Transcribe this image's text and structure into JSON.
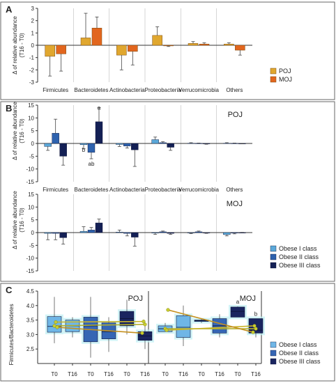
{
  "chart_data": [
    {
      "panel": "A",
      "type": "bar",
      "ylabel": [
        "Δ of relative abundance",
        "(T16 - T0)"
      ],
      "ylim": [
        -3,
        3
      ],
      "yticks": [
        -3,
        -2,
        -1,
        0,
        1,
        2,
        3
      ],
      "categories": [
        "Firmicutes",
        "Bacteroidetes",
        "Actinobacteria",
        "Proteobacteria",
        "Verrucomicrobia",
        "Others"
      ],
      "series": [
        {
          "name": "POJ",
          "color": "#E0A72F",
          "values": [
            -0.9,
            0.6,
            -0.8,
            0.8,
            0.15,
            0.1
          ],
          "errors": [
            1.6,
            2.0,
            1.2,
            0.7,
            0.15,
            0.1
          ]
        },
        {
          "name": "MOJ",
          "color": "#E2661E",
          "values": [
            -0.7,
            1.4,
            -0.5,
            -0.05,
            0.1,
            -0.4
          ],
          "errors": [
            1.4,
            0.9,
            1.1,
            0.05,
            0.1,
            0.4
          ]
        }
      ],
      "legend": {
        "position": "right",
        "labels": [
          "POJ",
          "MOJ"
        ]
      }
    },
    {
      "panel": "B",
      "type": "bar",
      "ylabel": [
        "Δ of relative abundance",
        "(T16 - T0)"
      ],
      "ylim": [
        -15,
        15
      ],
      "yticks": [
        -15,
        -10,
        -5,
        0,
        5,
        10,
        15
      ],
      "categories": [
        "Firmicutes",
        "Bacteroidetes",
        "Actinobacteria",
        "Proteobacteria",
        "Verrucomicrobia",
        "Others"
      ],
      "subpanels": [
        {
          "label": "POJ",
          "series": [
            {
              "name": "Obese I class",
              "values": [
                -1.2,
                -0.5,
                -0.4,
                1.5,
                0.1,
                0.1
              ],
              "errors": [
                1.5,
                1.5,
                0.8,
                1.0,
                0.2,
                0.2
              ]
            },
            {
              "name": "Obese II class",
              "values": [
                4.0,
                -3.5,
                -1.0,
                0.3,
                0.05,
                0.05
              ],
              "errors": [
                5.5,
                2.5,
                0.8,
                0.4,
                0.1,
                0.1
              ]
            },
            {
              "name": "Obese III class",
              "values": [
                -5.0,
                8.5,
                -2.5,
                -1.5,
                -0.1,
                -0.05
              ],
              "errors": [
                3.5,
                5.5,
                6.5,
                1.2,
                0.2,
                0.1
              ]
            }
          ],
          "annotations": [
            {
              "category": "Bacteroidetes",
              "series": "Obese I class",
              "text": "b"
            },
            {
              "category": "Bacteroidetes",
              "series": "Obese II class",
              "text": "ab"
            },
            {
              "category": "Bacteroidetes",
              "series": "Obese III class",
              "text": "a"
            }
          ]
        },
        {
          "label": "MOJ",
          "series": [
            {
              "name": "Obese I class",
              "values": [
                -0.3,
                0.5,
                0.2,
                -0.2,
                -0.1,
                -0.8
              ],
              "errors": [
                2.5,
                1.8,
                0.8,
                0.5,
                0.3,
                0.5
              ]
            },
            {
              "name": "Obese II class",
              "values": [
                -0.3,
                1.0,
                -0.3,
                0.3,
                0.3,
                -0.2
              ],
              "errors": [
                2.5,
                1.0,
                1.0,
                0.3,
                0.3,
                0.3
              ]
            },
            {
              "name": "Obese III class",
              "values": [
                -2.0,
                3.8,
                -1.8,
                -0.3,
                -0.1,
                0.0
              ],
              "errors": [
                2.5,
                1.5,
                3.5,
                0.4,
                0.2,
                0.1
              ]
            }
          ]
        }
      ],
      "legend": {
        "position": "right",
        "labels": [
          "Obese I class",
          "Obese II class",
          "Obese III class"
        ]
      }
    },
    {
      "panel": "C",
      "type": "box",
      "ylabel": "Firmicutes/Bacteroidetes",
      "ylim": [
        2.0,
        4.5
      ],
      "yticks": [
        2.5,
        3.0,
        3.5,
        4.0,
        4.5
      ],
      "xticks": [
        "T0",
        "T16",
        "T0",
        "T16",
        "T0",
        "T16"
      ],
      "subpanels": [
        {
          "label": "POJ",
          "boxes": [
            {
              "class": "Obese I class",
              "time": "T0",
              "whisker_low": 2.7,
              "q1": 3.08,
              "median": 3.28,
              "q3": 3.62,
              "whisker_high": 4.3
            },
            {
              "class": "Obese I class",
              "time": "T16",
              "whisker_low": 2.9,
              "q1": 3.1,
              "median": 3.3,
              "q3": 3.5,
              "whisker_high": 3.6
            },
            {
              "class": "Obese II class",
              "time": "T0",
              "whisker_low": 2.2,
              "q1": 2.75,
              "median": 3.3,
              "q3": 3.6,
              "whisker_high": 4.3
            },
            {
              "class": "Obese II class",
              "time": "T16",
              "whisker_low": 2.4,
              "q1": 2.85,
              "median": 3.1,
              "q3": 3.4,
              "whisker_high": 3.6
            },
            {
              "class": "Obese III class",
              "time": "T0",
              "whisker_low": 3.0,
              "q1": 3.3,
              "median": 3.55,
              "q3": 3.8,
              "whisker_high": 4.2
            },
            {
              "class": "Obese III class",
              "time": "T16",
              "whisker_low": 2.5,
              "q1": 2.8,
              "median": 2.95,
              "q3": 3.1,
              "whisker_high": 3.3
            }
          ],
          "lines": [
            {
              "name": "Obese I class",
              "color": "#B5AF2C",
              "T0": 3.3,
              "T16": 3.35
            },
            {
              "name": "Obese II class",
              "color": "#C9B429",
              "T0": 3.43,
              "T16": 3.45
            },
            {
              "name": "Obese III class",
              "color": "#C5901E",
              "T0": 3.25,
              "T16": 3.05
            }
          ]
        },
        {
          "label": "MOJ",
          "boxes": [
            {
              "class": "Obese I class",
              "time": "T0",
              "whisker_low": 3.1,
              "q1": 3.1,
              "median": 3.2,
              "q3": 3.3,
              "whisker_high": 3.4
            },
            {
              "class": "Obese I class",
              "time": "T16",
              "whisker_low": 2.6,
              "q1": 2.9,
              "median": 3.25,
              "q3": 3.65,
              "whisker_high": 4.0
            },
            {
              "class": "Obese II class",
              "time": "T0",
              "whisker_low": 3.4,
              "q1": 3.45,
              "median": 3.48,
              "q3": 3.5,
              "whisker_high": 3.55
            },
            {
              "class": "Obese II class",
              "time": "T16",
              "whisker_low": 2.9,
              "q1": 3.05,
              "median": 3.3,
              "q3": 3.55,
              "whisker_high": 3.7
            },
            {
              "class": "Obese III class",
              "time": "T0",
              "whisker_low": 3.6,
              "q1": 3.6,
              "median": 3.8,
              "q3": 3.95,
              "whisker_high": 3.97
            },
            {
              "class": "Obese III class",
              "time": "T16",
              "whisker_low": 2.9,
              "q1": 3.05,
              "median": 3.15,
              "q3": 3.55,
              "whisker_high": 3.55
            }
          ],
          "lines": [
            {
              "name": "Obese I class",
              "color": "#B5AF2C",
              "T0": 3.2,
              "T16": 3.2
            },
            {
              "name": "Obese II class",
              "color": "#C9B429",
              "T0": 3.15,
              "T16": 3.3
            },
            {
              "name": "Obese III class",
              "color": "#C5901E",
              "T0": 3.85,
              "T16": 3.08
            }
          ],
          "annotations": [
            {
              "box": "Obese III class T0",
              "text": "a"
            },
            {
              "box": "Obese III class T16",
              "text": "b"
            }
          ]
        }
      ],
      "legend": {
        "position": "right",
        "labels": [
          "Obese I class",
          "Obese II class",
          "Obese III class"
        ]
      }
    }
  ],
  "colors": {
    "obese1": "#5BA8D9",
    "obese2": "#2E62AE",
    "obese3": "#142055",
    "obese1_box": "#6FB6E6",
    "obese2_box": "#3666B4",
    "obese3_box": "#1A2560",
    "box_glow": "#BFEFF4"
  }
}
